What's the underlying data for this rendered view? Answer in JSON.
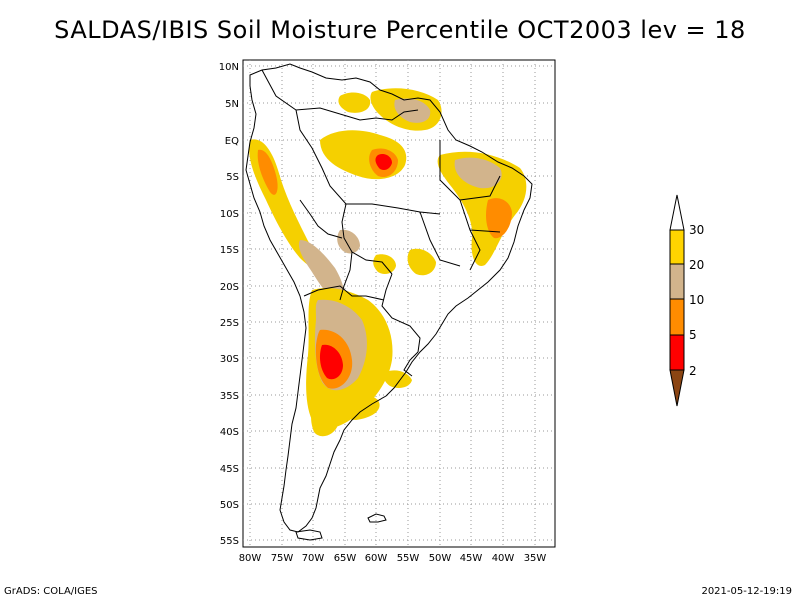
{
  "title": "SALDAS/IBIS Soil Moisture Percentile OCT2003 lev = 18",
  "footer": {
    "left": "GrADS: COLA/IGES",
    "right": "2021-05-12-19:19"
  },
  "map": {
    "lon_range": [
      -81,
      -32
    ],
    "lat_range": [
      -56,
      12
    ],
    "lon_ticks": [
      "80W",
      "75W",
      "70W",
      "65W",
      "60W",
      "55W",
      "50W",
      "45W",
      "40W",
      "35W"
    ],
    "lat_ticks": [
      "10N",
      "5N",
      "EQ",
      "5S",
      "10S",
      "15S",
      "20S",
      "25S",
      "30S",
      "35S",
      "40S",
      "45S",
      "50S",
      "55S"
    ],
    "gridlines": "dotted"
  },
  "legend": {
    "labels": [
      "30",
      "20",
      "10",
      "5",
      "2"
    ],
    "colors": {
      "above_30": "#ffffff",
      "20_30": "#ffd400",
      "10_20": "#d2b48c",
      "5_10": "#ff8c00",
      "2_5": "#ff0000",
      "below_2": "#8b4513"
    }
  },
  "colors": {
    "yellow": "#f5d000",
    "tan": "#d2b48c",
    "orange": "#ff8c00",
    "red": "#ff0000",
    "brown": "#8b4513",
    "outline": "#000000"
  }
}
